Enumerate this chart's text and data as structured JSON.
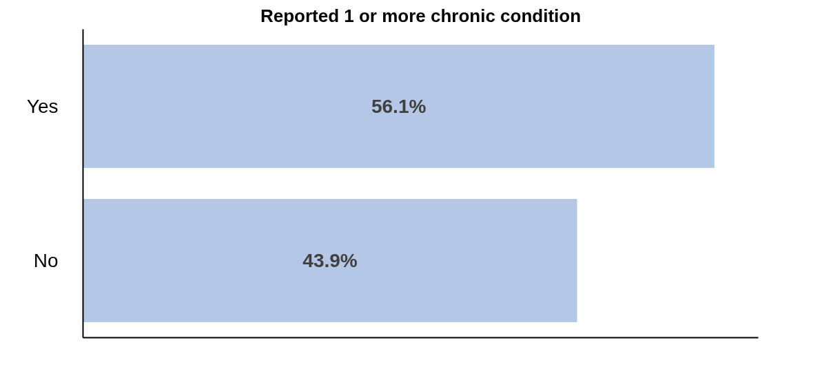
{
  "chart_data": {
    "type": "bar",
    "orientation": "horizontal",
    "title": "Reported 1 or more chronic condition",
    "categories": [
      "Yes",
      "No"
    ],
    "values": [
      56.1,
      43.9
    ],
    "value_labels": [
      "56.1%",
      "43.9%"
    ],
    "color": "#b4c7e7",
    "xlim": [
      0,
      60
    ],
    "tick_labels": "y",
    "grid": false
  }
}
